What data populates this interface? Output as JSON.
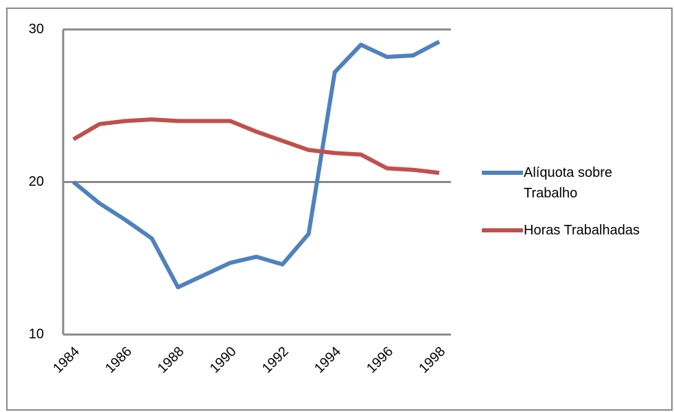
{
  "chart_data": {
    "type": "line",
    "categories": [
      "1984",
      null,
      "1986",
      null,
      "1988",
      null,
      "1990",
      null,
      "1992",
      null,
      "1994",
      null,
      "1996",
      null,
      "1998"
    ],
    "series": [
      {
        "name": "Alíquota sobre Trabalho",
        "color": "#4f81bd",
        "values": [
          20.0,
          18.6,
          17.5,
          16.3,
          13.1,
          13.9,
          14.7,
          15.1,
          14.6,
          16.6,
          27.2,
          29.0,
          28.2,
          28.3,
          29.2
        ]
      },
      {
        "name": "Horas Trabalhadas",
        "color": "#c0504d",
        "values": [
          22.8,
          23.8,
          24.0,
          24.1,
          24.0,
          24.0,
          24.0,
          23.3,
          22.7,
          22.1,
          21.9,
          21.8,
          20.9,
          20.8,
          20.6
        ]
      }
    ],
    "ylim": [
      10,
      30
    ],
    "yticks": [
      10,
      20,
      30
    ],
    "grid": true,
    "legend": "right"
  }
}
